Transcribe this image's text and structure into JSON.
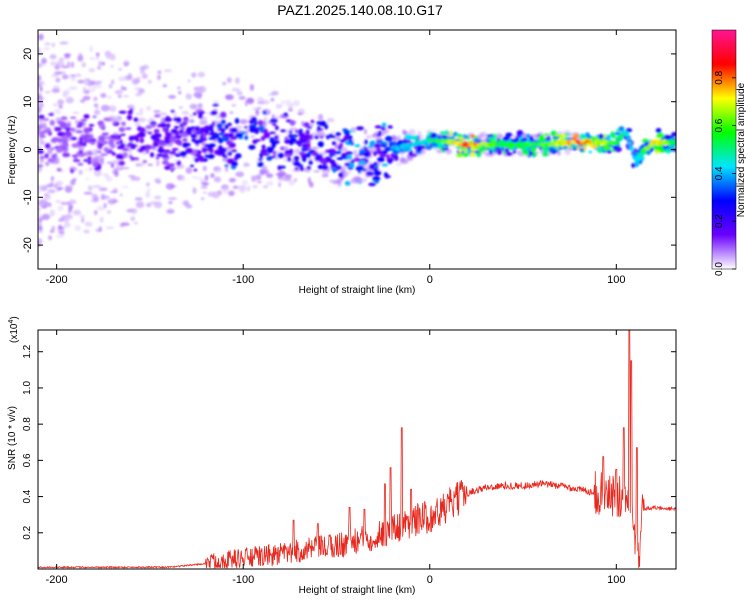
{
  "title": "PAZ1.2025.140.08.10.G17",
  "chart_data": [
    {
      "type": "heatmap",
      "xlabel": "Height of straight line (km)",
      "ylabel": "Frequency (Hz)",
      "xlim": [
        -210,
        132
      ],
      "ylim": [
        -25,
        25
      ],
      "xticks": [
        -200,
        -100,
        0,
        100
      ],
      "yticks": [
        -20,
        -10,
        0,
        10,
        20
      ],
      "colorbar": {
        "label": "Normalized spectral amplitude",
        "range": [
          0,
          1
        ],
        "ticks": [
          "0.0",
          "0.2",
          "0.4",
          "0.6",
          "0.8"
        ],
        "tick_values": [
          0,
          0.2,
          0.4,
          0.6,
          0.8
        ],
        "colors": [
          "#ffffff",
          "#6a00ff",
          "#0000ff",
          "#00e5ff",
          "#00ff00",
          "#ffff00",
          "#ff0000",
          "#ff1493"
        ]
      },
      "ridge": {
        "height_km": [
          -200,
          -150,
          -120,
          -100,
          -80,
          -60,
          -40,
          -20,
          0,
          20,
          40,
          60,
          80,
          100,
          105,
          110,
          120,
          132
        ],
        "frequency_hz": [
          2,
          1.5,
          2.5,
          3,
          2,
          0,
          -1.5,
          0,
          2,
          1,
          1,
          1,
          1.5,
          1.5,
          4,
          -2,
          1.5,
          1.5
        ],
        "amplitude": [
          0.15,
          0.2,
          0.3,
          0.4,
          0.3,
          0.35,
          0.45,
          0.4,
          0.5,
          0.85,
          0.55,
          0.6,
          0.85,
          0.6,
          0.5,
          0.4,
          0.8,
          0.55
        ]
      }
    },
    {
      "type": "line",
      "xlabel": "Height of straight line (km)",
      "ylabel": "SNR (10 * v/v)",
      "y_multiplier": "(x10",
      "y_multiplier_exp": "4",
      "y_multiplier_close": ")",
      "xlim": [
        -210,
        132
      ],
      "ylim": [
        0,
        1.32
      ],
      "xticks": [
        -200,
        -100,
        0,
        100
      ],
      "yticks": [
        "0.2",
        "0.4",
        "0.6",
        "0.8",
        "1.0",
        "1.2"
      ],
      "ytick_values": [
        0.2,
        0.4,
        0.6,
        0.8,
        1.0,
        1.2
      ],
      "color": "#e8281e",
      "series": [
        {
          "x": [
            -210,
            -200,
            -180,
            -160,
            -140,
            -130,
            -120,
            -110,
            -100,
            -90,
            -80,
            -70,
            -60,
            -50,
            -40,
            -30,
            -25,
            -20,
            -15,
            -10,
            -5,
            0,
            5,
            10,
            20,
            30,
            40,
            50,
            60,
            70,
            80,
            90,
            95,
            100,
            102,
            104,
            106,
            108,
            110,
            112,
            114,
            120,
            132
          ],
          "y": [
            0.01,
            0.01,
            0.01,
            0.01,
            0.01,
            0.02,
            0.03,
            0.05,
            0.06,
            0.07,
            0.08,
            0.1,
            0.11,
            0.13,
            0.15,
            0.18,
            0.2,
            0.22,
            0.24,
            0.26,
            0.28,
            0.29,
            0.31,
            0.35,
            0.42,
            0.45,
            0.46,
            0.46,
            0.47,
            0.46,
            0.44,
            0.42,
            0.41,
            0.4,
            0.4,
            0.42,
            0.45,
            0.4,
            0.2,
            0.05,
            0.33,
            0.34,
            0.33
          ],
          "spikes": [
            {
              "x": -73,
              "y": 0.27
            },
            {
              "x": -60,
              "y": 0.25
            },
            {
              "x": -43,
              "y": 0.34
            },
            {
              "x": -35,
              "y": 0.33
            },
            {
              "x": -24,
              "y": 0.47
            },
            {
              "x": -21,
              "y": 0.56
            },
            {
              "x": -15,
              "y": 0.78
            },
            {
              "x": -10,
              "y": 0.44
            },
            {
              "x": 93,
              "y": 0.62
            },
            {
              "x": 100,
              "y": 0.55
            },
            {
              "x": 104,
              "y": 0.78
            },
            {
              "x": 107,
              "y": 1.32
            },
            {
              "x": 108,
              "y": 1.15
            },
            {
              "x": 111,
              "y": 0.67
            }
          ]
        }
      ]
    }
  ]
}
